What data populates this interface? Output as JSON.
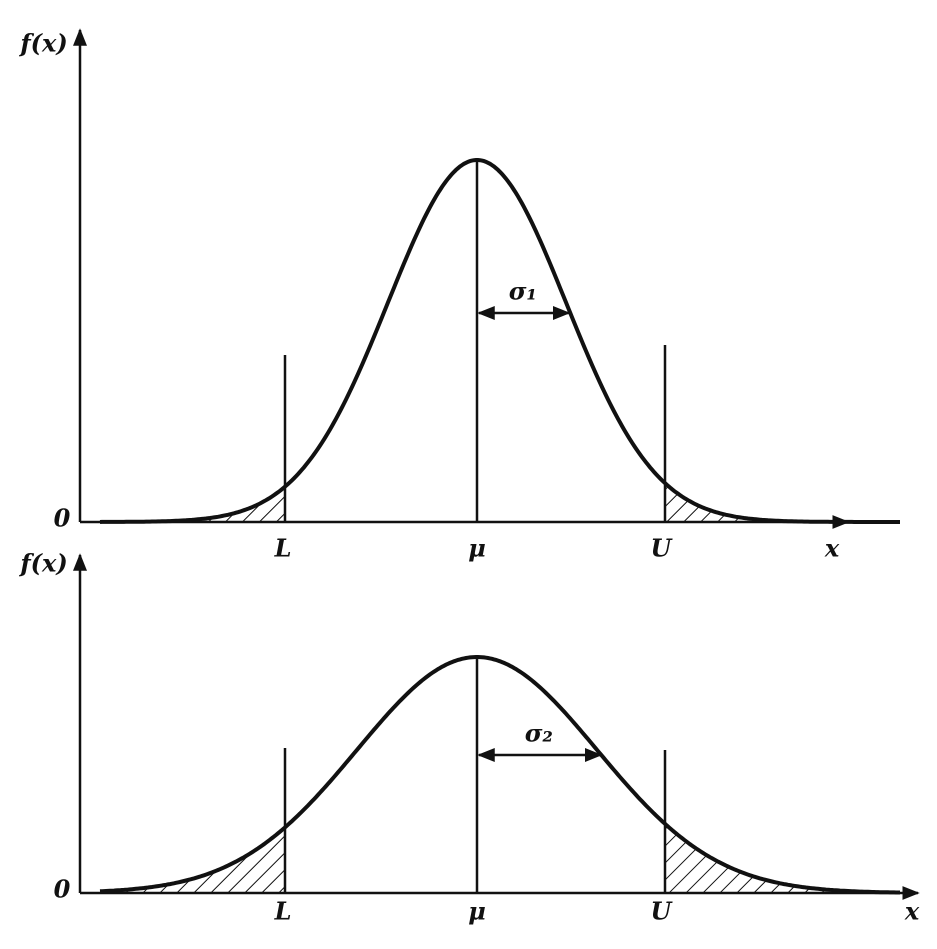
{
  "panels": [
    {
      "y_label": "f(x)",
      "origin": "0",
      "lower": "L",
      "mean": "μ",
      "upper": "U",
      "x_label": "x",
      "sigma": "σ₁"
    },
    {
      "y_label": "f(x)",
      "origin": "0",
      "lower": "L",
      "mean": "μ",
      "upper": "U",
      "x_label": "x",
      "sigma": "σ₂"
    }
  ]
}
